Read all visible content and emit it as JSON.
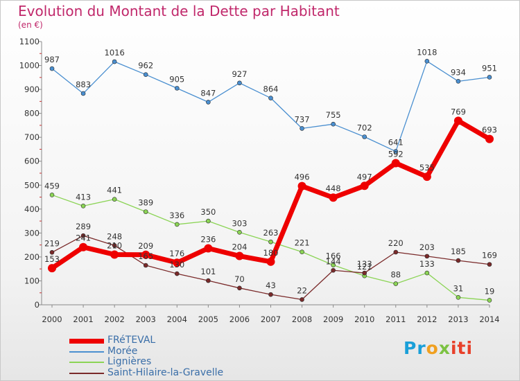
{
  "title": "Evolution du Montant de la Dette par Habitant",
  "subtitle": "(en €)",
  "logo": {
    "p1": "Pr",
    "p2": "o",
    "p3": "x",
    "p4": "iti"
  },
  "chart_data": {
    "type": "line",
    "x": [
      "2000",
      "2001",
      "2002",
      "2003",
      "2004",
      "2005",
      "2006",
      "2007",
      "2008",
      "2009",
      "2010",
      "2011",
      "2012",
      "2013",
      "2014"
    ],
    "ylim": [
      0,
      1100
    ],
    "yticks": [
      0,
      100,
      200,
      300,
      400,
      500,
      600,
      700,
      800,
      900,
      1000,
      1100
    ],
    "grid": false,
    "legend": "bottom-left",
    "series": [
      {
        "name": "FRéTEVAL",
        "color": "#ee0000",
        "values": [
          153,
          241,
          210,
          209,
          176,
          236,
          204,
          180,
          496,
          448,
          497,
          592,
          535,
          769,
          693
        ]
      },
      {
        "name": "Morée",
        "color": "#4a8fd0",
        "values": [
          987,
          883,
          1016,
          962,
          905,
          847,
          927,
          864,
          737,
          755,
          702,
          641,
          1018,
          934,
          951
        ]
      },
      {
        "name": "Lignières",
        "color": "#8bd455",
        "values": [
          459,
          413,
          441,
          389,
          336,
          350,
          303,
          263,
          221,
          166,
          121,
          88,
          133,
          31,
          19
        ]
      },
      {
        "name": "Saint-Hilaire-la-Gravelle",
        "color": "#7a2a2a",
        "values": [
          219,
          289,
          248,
          165,
          130,
          101,
          70,
          43,
          22,
          144,
          133,
          220,
          203,
          185,
          169
        ]
      }
    ]
  }
}
